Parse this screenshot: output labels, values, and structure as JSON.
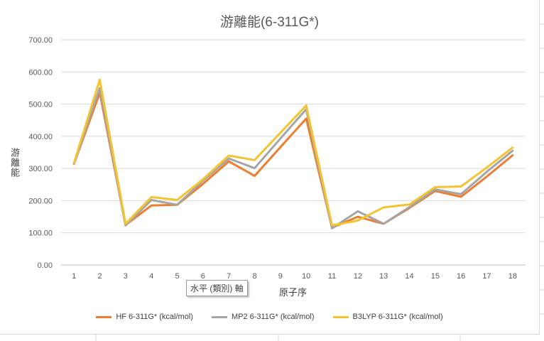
{
  "chart_data": {
    "type": "line",
    "title": "游離能(6-311G*)",
    "ylabel": "游離能",
    "xlabel": "原子序",
    "ylim": [
      0,
      700
    ],
    "yticks": [
      "0.00",
      "100.00",
      "200.00",
      "300.00",
      "400.00",
      "500.00",
      "600.00",
      "700.00"
    ],
    "categories": [
      "1",
      "2",
      "3",
      "4",
      "5",
      "6",
      "7",
      "8",
      "9",
      "10",
      "11",
      "12",
      "13",
      "14",
      "15",
      "16",
      "17",
      "18"
    ],
    "grid": "horizontal",
    "legend_position": "bottom",
    "series": [
      {
        "name": "HF 6-311G* (kcal/mol)",
        "color": "#ED7D31",
        "values": [
          314,
          535,
          124,
          185,
          187,
          252,
          322,
          277,
          366,
          455,
          116,
          150,
          128,
          177,
          230,
          212,
          275,
          341
        ]
      },
      {
        "name": "MP2 6-311G* (kcal/mol)",
        "color": "#A5A5A5",
        "values": [
          314,
          550,
          123,
          202,
          187,
          262,
          331,
          301,
          393,
          484,
          114,
          167,
          128,
          180,
          235,
          220,
          290,
          355
        ]
      },
      {
        "name": "B3LYP 6-311G* (kcal/mol)",
        "color": "#F4C430",
        "values": [
          317,
          576,
          128,
          211,
          202,
          266,
          340,
          326,
          411,
          496,
          123,
          138,
          179,
          188,
          242,
          244,
          303,
          365
        ]
      }
    ]
  },
  "tooltip": {
    "text": "水平 (類別) 軸"
  }
}
